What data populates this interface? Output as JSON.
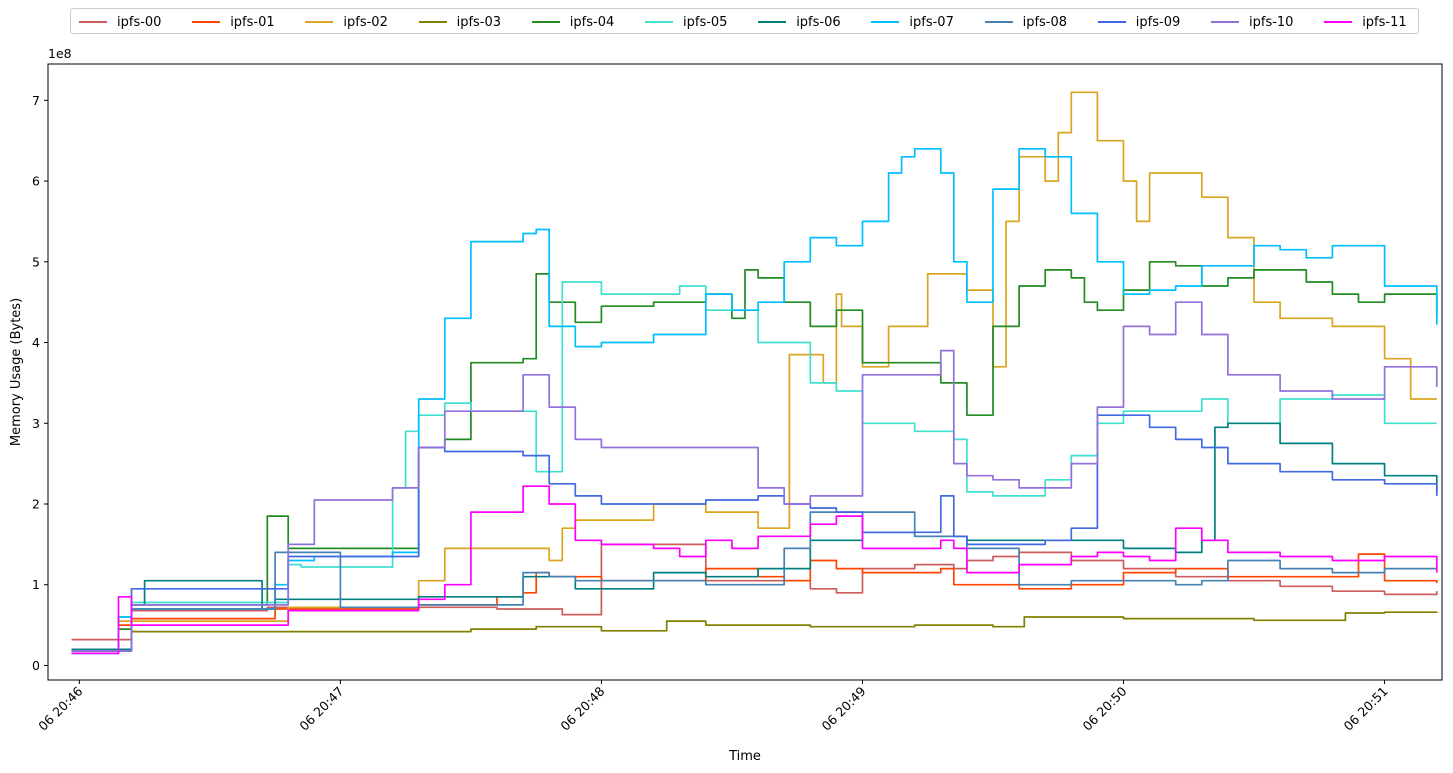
{
  "chart_data": {
    "type": "line",
    "xlabel": "Time",
    "ylabel": "Memory Usage (Bytes)",
    "y_offset_text": "1e8",
    "y_scale": 100000000,
    "xlim": [
      -0.12,
      5.22
    ],
    "ylim": [
      -0.18,
      7.45
    ],
    "x_ticks": [
      {
        "value": 0,
        "label": "06 20:46"
      },
      {
        "value": 1,
        "label": "06 20:47"
      },
      {
        "value": 2,
        "label": "06 20:48"
      },
      {
        "value": 3,
        "label": "06 20:49"
      },
      {
        "value": 4,
        "label": "06 20:50"
      },
      {
        "value": 5,
        "label": "06 20:51"
      }
    ],
    "y_ticks": [
      0,
      1,
      2,
      3,
      4,
      5,
      6,
      7
    ],
    "legend_position": "top (above plot)",
    "grid": false,
    "series": [
      {
        "name": "ipfs-00",
        "color": "#cd5c5c",
        "x": [
          -0.03,
          0.1,
          0.2,
          0.3,
          0.5,
          0.7,
          0.72,
          1,
          1.3,
          1.6,
          1.7,
          1.8,
          1.85,
          1.9,
          1.95,
          2.0,
          2.2,
          2.4,
          2.8,
          2.9,
          3.0,
          3.2,
          3.35,
          3.4,
          3.5,
          3.6,
          3.8,
          4.0,
          4.2,
          4.4,
          4.6,
          4.8,
          5.0,
          5.2
        ],
        "y": [
          0.32,
          0.32,
          0.68,
          0.68,
          0.68,
          0.68,
          0.72,
          0.72,
          0.72,
          0.7,
          0.7,
          0.7,
          0.63,
          0.63,
          0.63,
          1.5,
          1.5,
          1.05,
          0.95,
          0.9,
          1.2,
          1.25,
          1.2,
          1.3,
          1.35,
          1.4,
          1.3,
          1.2,
          1.1,
          1.05,
          0.98,
          0.92,
          0.88,
          0.92
        ]
      },
      {
        "name": "ipfs-01",
        "color": "#ff4500",
        "x": [
          -0.03,
          0.1,
          0.15,
          0.2,
          0.3,
          0.5,
          0.7,
          0.75,
          1,
          1.3,
          1.6,
          1.7,
          1.75,
          1.8,
          2.0,
          2.2,
          2.4,
          2.6,
          2.7,
          2.8,
          2.9,
          3.0,
          3.3,
          3.35,
          3.4,
          3.6,
          3.8,
          4.0,
          4.2,
          4.4,
          4.6,
          4.8,
          4.9,
          5.0,
          5.2
        ],
        "y": [
          0.18,
          0.18,
          0.5,
          0.58,
          0.58,
          0.58,
          0.58,
          0.7,
          0.7,
          0.75,
          0.85,
          0.9,
          1.15,
          1.1,
          1.05,
          1.05,
          1.2,
          1.1,
          1.05,
          1.3,
          1.2,
          1.15,
          1.2,
          1.0,
          1.0,
          0.95,
          1.0,
          1.15,
          1.2,
          1.1,
          1.1,
          1.1,
          1.38,
          1.05,
          1.02
        ]
      },
      {
        "name": "ipfs-02",
        "color": "#daa520",
        "x": [
          -0.03,
          0.1,
          0.15,
          0.2,
          0.5,
          0.7,
          0.8,
          1,
          1.2,
          1.3,
          1.4,
          1.5,
          1.7,
          1.8,
          1.85,
          1.9,
          2.0,
          2.2,
          2.4,
          2.6,
          2.7,
          2.72,
          2.8,
          2.85,
          2.9,
          2.92,
          3.0,
          3.1,
          3.25,
          3.4,
          3.5,
          3.55,
          3.6,
          3.7,
          3.75,
          3.8,
          3.9,
          4.0,
          4.05,
          4.1,
          4.2,
          4.3,
          4.4,
          4.5,
          4.6,
          4.8,
          5.0,
          5.1,
          5.2
        ],
        "y": [
          0.2,
          0.2,
          0.55,
          0.55,
          0.55,
          0.55,
          0.72,
          0.72,
          0.72,
          1.05,
          1.45,
          1.45,
          1.45,
          1.3,
          1.7,
          1.8,
          1.8,
          2.0,
          1.9,
          1.7,
          1.7,
          3.85,
          3.85,
          3.5,
          4.6,
          4.2,
          3.7,
          4.2,
          4.85,
          4.65,
          3.7,
          5.5,
          6.3,
          6.0,
          6.6,
          7.1,
          6.5,
          6.0,
          5.5,
          6.1,
          6.1,
          5.8,
          5.3,
          4.5,
          4.3,
          4.2,
          3.8,
          3.3,
          3.3
        ]
      },
      {
        "name": "ipfs-03",
        "color": "#808000",
        "x": [
          -0.03,
          0.1,
          0.2,
          0.5,
          0.7,
          1,
          1.5,
          1.7,
          1.75,
          2.0,
          2.2,
          2.25,
          2.4,
          2.8,
          3.0,
          3.2,
          3.5,
          3.6,
          3.62,
          4.0,
          4.5,
          4.8,
          4.85,
          5.0,
          5.2
        ],
        "y": [
          0.18,
          0.18,
          0.42,
          0.42,
          0.42,
          0.42,
          0.45,
          0.45,
          0.48,
          0.43,
          0.43,
          0.55,
          0.5,
          0.48,
          0.48,
          0.5,
          0.48,
          0.48,
          0.6,
          0.58,
          0.56,
          0.56,
          0.65,
          0.66,
          0.65
        ]
      },
      {
        "name": "ipfs-04",
        "color": "#228b22",
        "x": [
          -0.03,
          0.1,
          0.15,
          0.2,
          0.5,
          0.7,
          0.72,
          0.8,
          0.85,
          1,
          1.2,
          1.3,
          1.4,
          1.5,
          1.6,
          1.7,
          1.75,
          1.8,
          1.9,
          2.0,
          2.2,
          2.4,
          2.5,
          2.55,
          2.6,
          2.7,
          2.8,
          2.9,
          3.0,
          3.1,
          3.3,
          3.4,
          3.5,
          3.6,
          3.7,
          3.8,
          3.85,
          3.9,
          4.0,
          4.1,
          4.2,
          4.3,
          4.4,
          4.5,
          4.6,
          4.7,
          4.8,
          4.9,
          5.0,
          5.2
        ],
        "y": [
          0.18,
          0.18,
          0.45,
          0.75,
          0.75,
          0.75,
          1.85,
          1.45,
          1.45,
          1.45,
          1.45,
          2.7,
          2.8,
          3.75,
          3.75,
          3.8,
          4.85,
          4.5,
          4.25,
          4.45,
          4.5,
          4.6,
          4.3,
          4.9,
          4.8,
          4.5,
          4.2,
          4.4,
          3.75,
          3.75,
          3.5,
          3.1,
          4.2,
          4.7,
          4.9,
          4.8,
          4.5,
          4.4,
          4.65,
          5.0,
          4.95,
          4.7,
          4.8,
          4.9,
          4.9,
          4.75,
          4.6,
          4.5,
          4.6,
          4.35
        ]
      },
      {
        "name": "ipfs-05",
        "color": "#40e0d0",
        "x": [
          -0.03,
          0.1,
          0.15,
          0.2,
          0.5,
          0.7,
          0.8,
          0.85,
          1,
          1.15,
          1.2,
          1.25,
          1.3,
          1.4,
          1.5,
          1.6,
          1.7,
          1.75,
          1.8,
          1.85,
          2.0,
          2.2,
          2.3,
          2.4,
          2.6,
          2.8,
          2.9,
          3.0,
          3.2,
          3.35,
          3.4,
          3.5,
          3.6,
          3.7,
          3.8,
          3.9,
          4.0,
          4.2,
          4.3,
          4.4,
          4.6,
          4.8,
          5.0,
          5.2
        ],
        "y": [
          0.2,
          0.2,
          0.6,
          0.78,
          0.78,
          0.78,
          1.25,
          1.22,
          1.22,
          1.22,
          2.2,
          2.9,
          3.1,
          3.25,
          3.15,
          3.15,
          3.15,
          2.4,
          2.4,
          4.75,
          4.6,
          4.6,
          4.7,
          4.4,
          4.0,
          3.5,
          3.4,
          3.0,
          2.9,
          2.8,
          2.15,
          2.1,
          2.1,
          2.3,
          2.6,
          3.0,
          3.15,
          3.15,
          3.3,
          3.0,
          3.3,
          3.35,
          3.0,
          3.0
        ]
      },
      {
        "name": "ipfs-06",
        "color": "#008080",
        "x": [
          -0.03,
          0.1,
          0.2,
          0.25,
          0.5,
          0.65,
          0.7,
          0.75,
          1,
          1.2,
          1.3,
          1.5,
          1.6,
          1.7,
          1.8,
          1.9,
          2.0,
          2.2,
          2.4,
          2.6,
          2.8,
          3.0,
          3.2,
          3.4,
          3.6,
          3.8,
          4.0,
          4.2,
          4.3,
          4.35,
          4.4,
          4.6,
          4.8,
          5.0,
          5.2
        ],
        "y": [
          0.2,
          0.2,
          0.75,
          1.05,
          1.05,
          1.05,
          0.7,
          0.82,
          0.82,
          0.82,
          0.85,
          0.85,
          0.85,
          1.1,
          1.1,
          0.95,
          0.95,
          1.15,
          1.1,
          1.2,
          1.55,
          1.65,
          1.6,
          1.55,
          1.55,
          1.55,
          1.45,
          1.4,
          1.55,
          2.95,
          3.0,
          2.75,
          2.5,
          2.35,
          2.15
        ]
      },
      {
        "name": "ipfs-07",
        "color": "#00bfff",
        "x": [
          -0.03,
          0.1,
          0.15,
          0.2,
          0.3,
          0.5,
          0.7,
          0.75,
          0.8,
          0.9,
          1,
          1.1,
          1.2,
          1.3,
          1.4,
          1.5,
          1.6,
          1.7,
          1.75,
          1.8,
          1.9,
          2.0,
          2.2,
          2.4,
          2.5,
          2.6,
          2.7,
          2.8,
          2.9,
          3.0,
          3.1,
          3.15,
          3.2,
          3.3,
          3.35,
          3.4,
          3.5,
          3.6,
          3.7,
          3.8,
          3.9,
          4.0,
          4.1,
          4.2,
          4.3,
          4.4,
          4.5,
          4.6,
          4.7,
          4.8,
          5.0,
          5.2
        ],
        "y": [
          0.15,
          0.15,
          0.6,
          0.7,
          0.7,
          0.7,
          0.7,
          1.0,
          1.3,
          1.35,
          1.35,
          1.35,
          1.4,
          3.3,
          4.3,
          5.25,
          5.25,
          5.35,
          5.4,
          4.2,
          3.95,
          4.0,
          4.1,
          4.6,
          4.4,
          4.5,
          5.0,
          5.3,
          5.2,
          5.5,
          6.1,
          6.3,
          6.4,
          6.1,
          5.0,
          4.5,
          5.9,
          6.4,
          6.3,
          5.6,
          5.0,
          4.6,
          4.65,
          4.7,
          4.95,
          4.95,
          5.2,
          5.15,
          5.05,
          5.2,
          4.7,
          4.22
        ]
      },
      {
        "name": "ipfs-08",
        "color": "#4682b4",
        "x": [
          -0.03,
          0.1,
          0.2,
          0.5,
          0.7,
          0.75,
          1,
          1.2,
          1.3,
          1.5,
          1.65,
          1.7,
          1.8,
          1.9,
          2.0,
          2.2,
          2.4,
          2.6,
          2.7,
          2.8,
          3.0,
          3.2,
          3.3,
          3.4,
          3.6,
          3.8,
          4.0,
          4.2,
          4.3,
          4.4,
          4.6,
          4.8,
          5.0,
          5.2
        ],
        "y": [
          0.18,
          0.18,
          0.7,
          0.7,
          0.7,
          1.4,
          0.72,
          0.72,
          0.75,
          0.75,
          0.75,
          1.15,
          1.1,
          1.05,
          1.05,
          1.05,
          1.0,
          1.0,
          1.45,
          1.9,
          1.9,
          1.6,
          1.6,
          1.45,
          1.0,
          1.05,
          1.05,
          1.0,
          1.05,
          1.3,
          1.2,
          1.15,
          1.2,
          1.2
        ]
      },
      {
        "name": "ipfs-09",
        "color": "#4169e1",
        "x": [
          -0.03,
          0.1,
          0.2,
          0.5,
          0.7,
          0.8,
          0.9,
          1,
          1.2,
          1.3,
          1.4,
          1.6,
          1.7,
          1.8,
          1.9,
          2.0,
          2.2,
          2.4,
          2.6,
          2.7,
          2.8,
          2.9,
          3.0,
          3.2,
          3.3,
          3.35,
          3.4,
          3.6,
          3.7,
          3.8,
          3.9,
          4.0,
          4.1,
          4.2,
          4.3,
          4.4,
          4.6,
          4.8,
          5.0,
          5.2
        ],
        "y": [
          0.18,
          0.18,
          0.95,
          0.95,
          0.95,
          1.35,
          1.35,
          1.35,
          1.35,
          2.7,
          2.65,
          2.65,
          2.6,
          2.25,
          2.1,
          2.0,
          2.0,
          2.05,
          2.1,
          2.0,
          1.95,
          1.9,
          1.65,
          1.65,
          2.1,
          1.6,
          1.5,
          1.5,
          1.55,
          1.7,
          3.1,
          3.1,
          2.95,
          2.8,
          2.7,
          2.5,
          2.4,
          2.3,
          2.25,
          2.1
        ]
      },
      {
        "name": "ipfs-10",
        "color": "#9370db",
        "x": [
          -0.03,
          0.1,
          0.2,
          0.5,
          0.6,
          0.7,
          0.8,
          0.9,
          1,
          1.1,
          1.2,
          1.3,
          1.4,
          1.5,
          1.6,
          1.7,
          1.8,
          1.9,
          2.0,
          2.2,
          2.4,
          2.6,
          2.7,
          2.8,
          2.9,
          3.0,
          3.1,
          3.2,
          3.3,
          3.35,
          3.4,
          3.5,
          3.6,
          3.8,
          3.9,
          4.0,
          4.1,
          4.2,
          4.3,
          4.4,
          4.6,
          4.8,
          5.0,
          5.2
        ],
        "y": [
          0.18,
          0.18,
          0.75,
          0.75,
          0.75,
          0.75,
          1.5,
          2.05,
          2.05,
          2.05,
          2.2,
          2.7,
          3.15,
          3.15,
          3.15,
          3.6,
          3.2,
          2.8,
          2.7,
          2.7,
          2.7,
          2.2,
          2.0,
          2.1,
          2.1,
          3.6,
          3.6,
          3.6,
          3.9,
          2.5,
          2.35,
          2.3,
          2.2,
          2.5,
          3.2,
          4.2,
          4.1,
          4.5,
          4.1,
          3.6,
          3.4,
          3.3,
          3.7,
          3.45
        ]
      },
      {
        "name": "ipfs-11",
        "color": "#ff00ff",
        "x": [
          -0.03,
          0.1,
          0.15,
          0.2,
          0.5,
          0.7,
          0.8,
          1,
          1.2,
          1.3,
          1.4,
          1.5,
          1.65,
          1.7,
          1.8,
          1.9,
          2.0,
          2.2,
          2.3,
          2.4,
          2.5,
          2.6,
          2.8,
          2.9,
          3.0,
          3.2,
          3.3,
          3.35,
          3.4,
          3.6,
          3.8,
          3.9,
          4.0,
          4.1,
          4.2,
          4.3,
          4.4,
          4.6,
          4.8,
          5.0,
          5.2
        ],
        "y": [
          0.15,
          0.15,
          0.85,
          0.5,
          0.5,
          0.5,
          0.68,
          0.68,
          0.68,
          0.82,
          1.0,
          1.9,
          1.9,
          2.22,
          2.0,
          1.55,
          1.5,
          1.45,
          1.35,
          1.55,
          1.45,
          1.6,
          1.75,
          1.85,
          1.45,
          1.45,
          1.55,
          1.45,
          1.15,
          1.25,
          1.35,
          1.4,
          1.35,
          1.3,
          1.7,
          1.55,
          1.4,
          1.35,
          1.3,
          1.35,
          1.15
        ]
      }
    ]
  }
}
